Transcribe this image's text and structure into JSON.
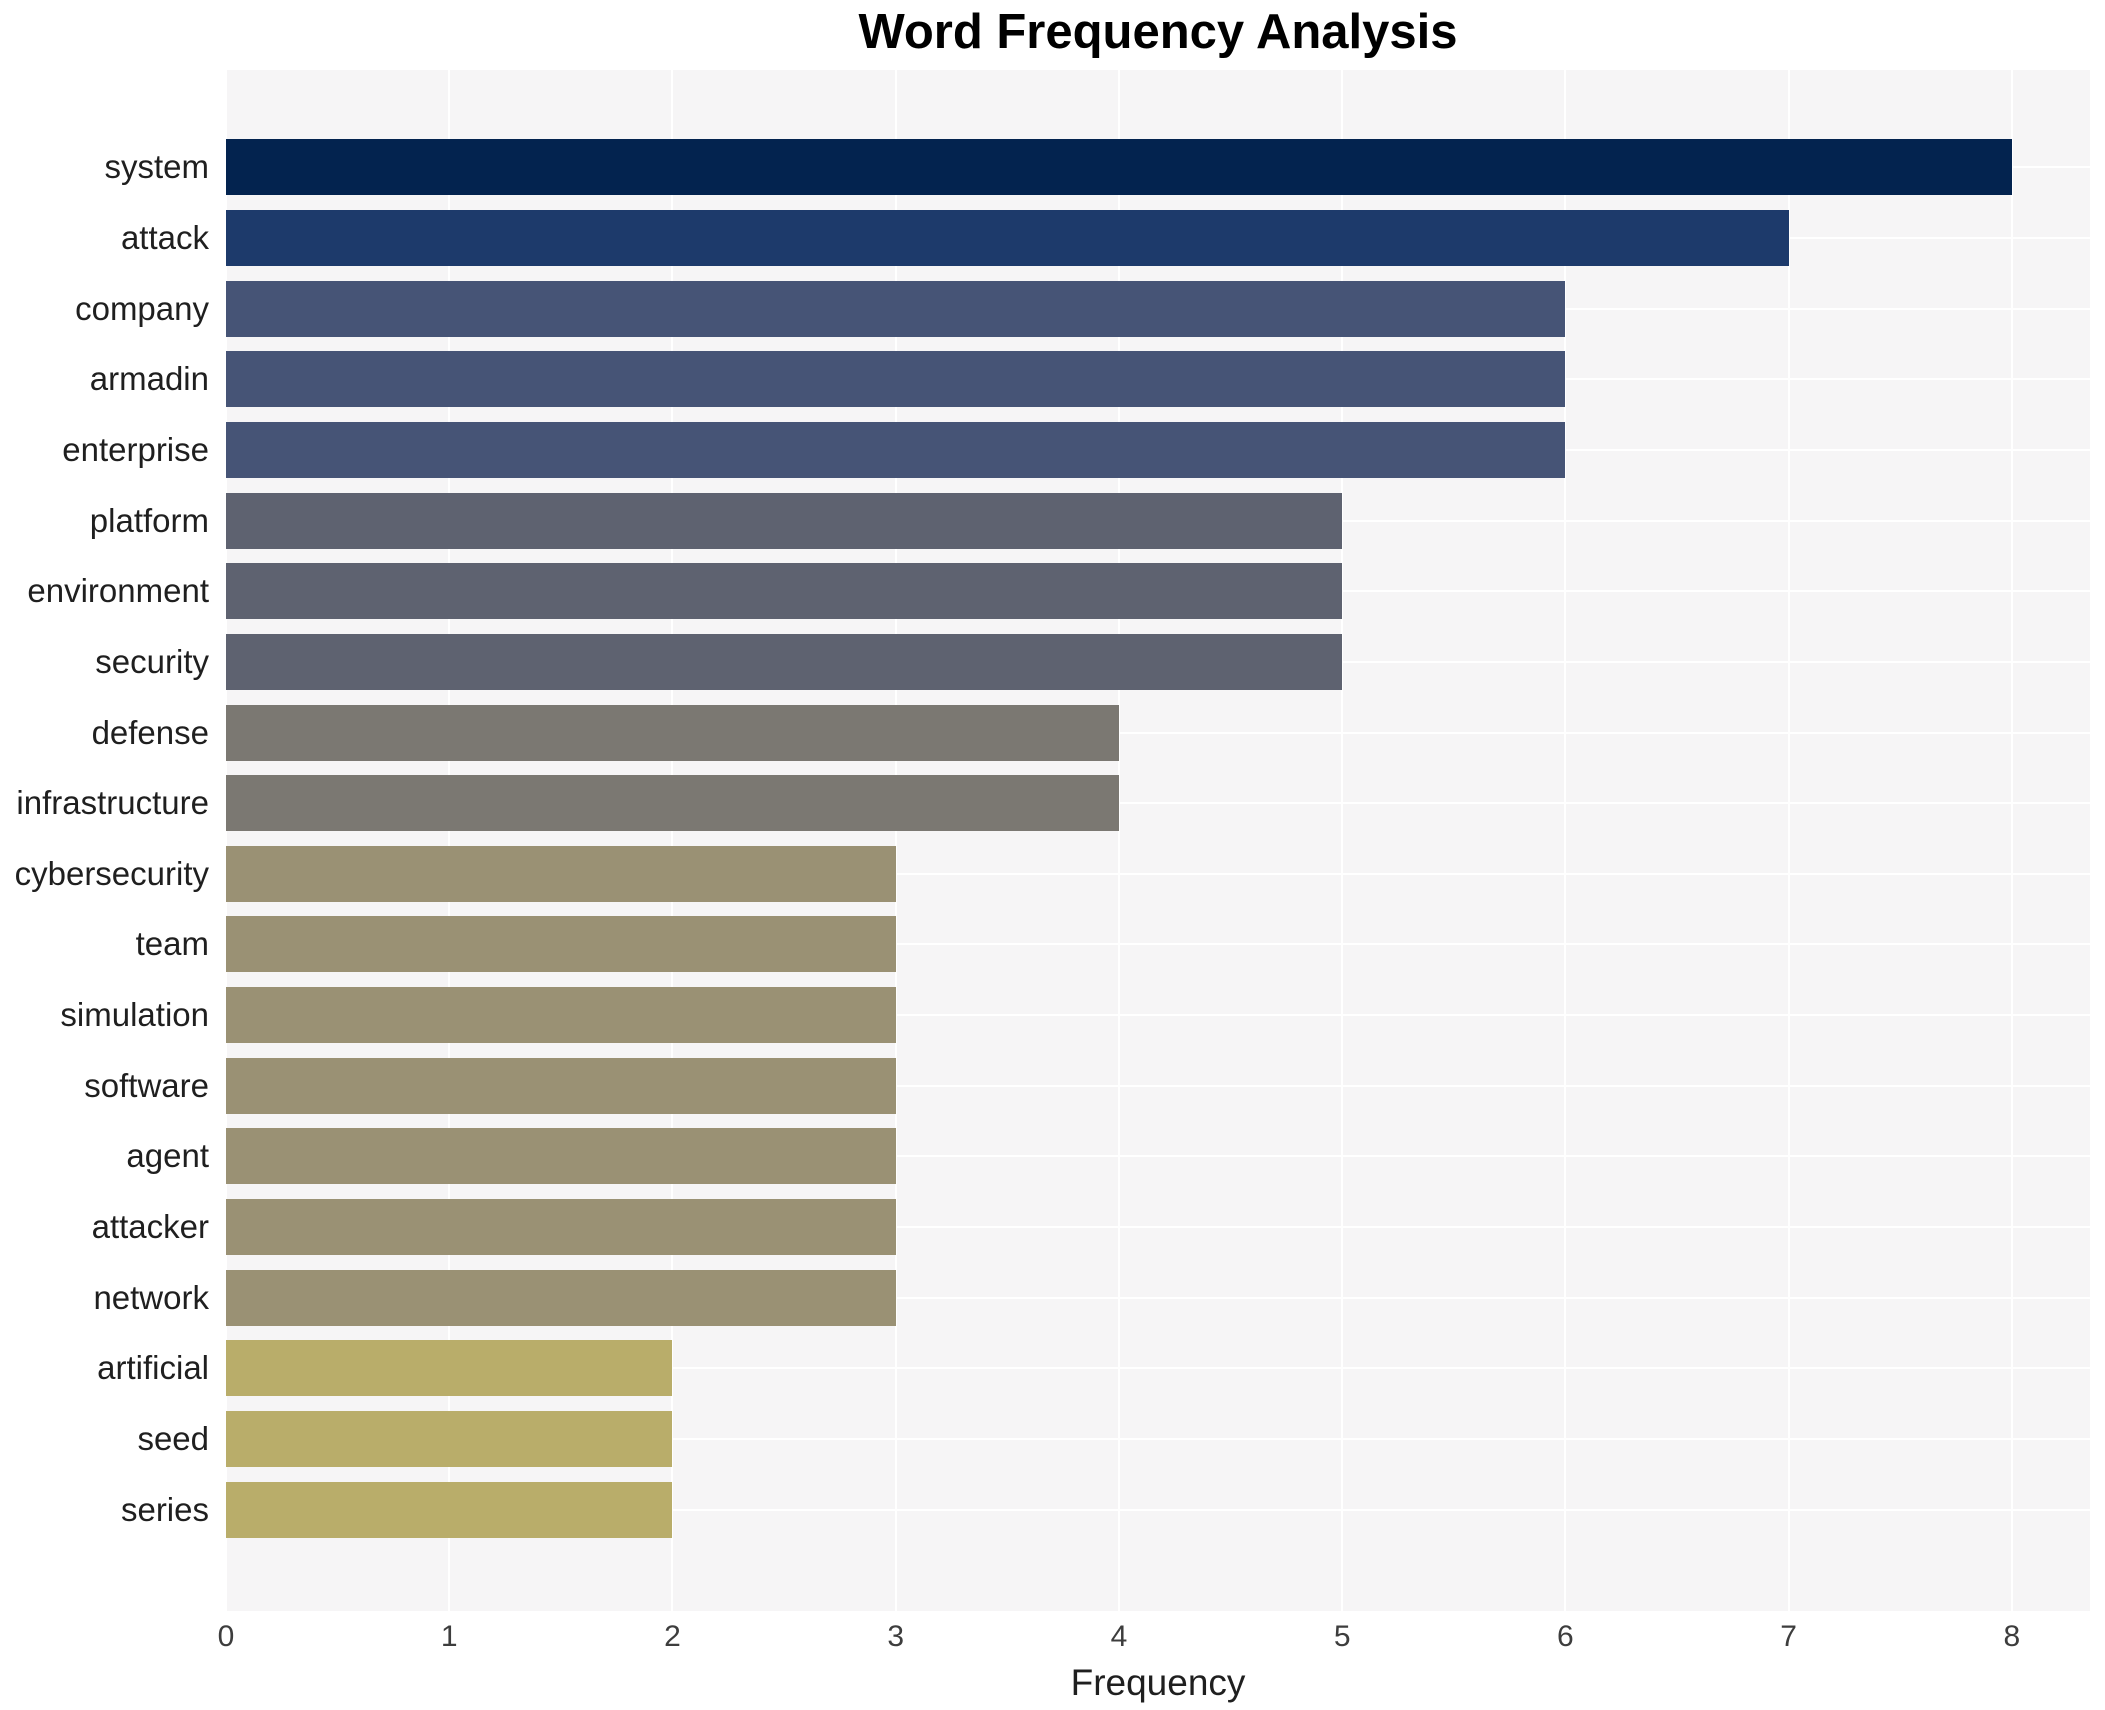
{
  "chart_data": {
    "type": "bar",
    "orientation": "horizontal",
    "title": "Word Frequency Analysis",
    "xlabel": "Frequency",
    "ylabel": "",
    "categories": [
      "system",
      "attack",
      "company",
      "armadin",
      "enterprise",
      "platform",
      "environment",
      "security",
      "defense",
      "infrastructure",
      "cybersecurity",
      "team",
      "simulation",
      "software",
      "agent",
      "attacker",
      "network",
      "artificial",
      "seed",
      "series"
    ],
    "values": [
      8,
      7,
      6,
      6,
      6,
      5,
      5,
      5,
      4,
      4,
      3,
      3,
      3,
      3,
      3,
      3,
      3,
      2,
      2,
      2
    ],
    "bar_colors": [
      "#03234f",
      "#1d3a6b",
      "#465476",
      "#465476",
      "#465476",
      "#5e6270",
      "#5e6270",
      "#5e6270",
      "#7b7872",
      "#7b7872",
      "#9a9174",
      "#9a9174",
      "#9a9174",
      "#9a9174",
      "#9a9174",
      "#9a9174",
      "#9a9174",
      "#b9ad6a",
      "#b9ad6a",
      "#b9ad6a"
    ],
    "x_ticks": [
      0,
      1,
      2,
      3,
      4,
      5,
      6,
      7,
      8
    ],
    "xlim": [
      0,
      8.35
    ],
    "grid": true,
    "legend": "none",
    "plot_bg_color": "#f6f5f6",
    "grid_color": "#ffffff",
    "title_color": "#000000",
    "label_color": "#1f1f1f",
    "tick_color": "#3d3d3d"
  }
}
